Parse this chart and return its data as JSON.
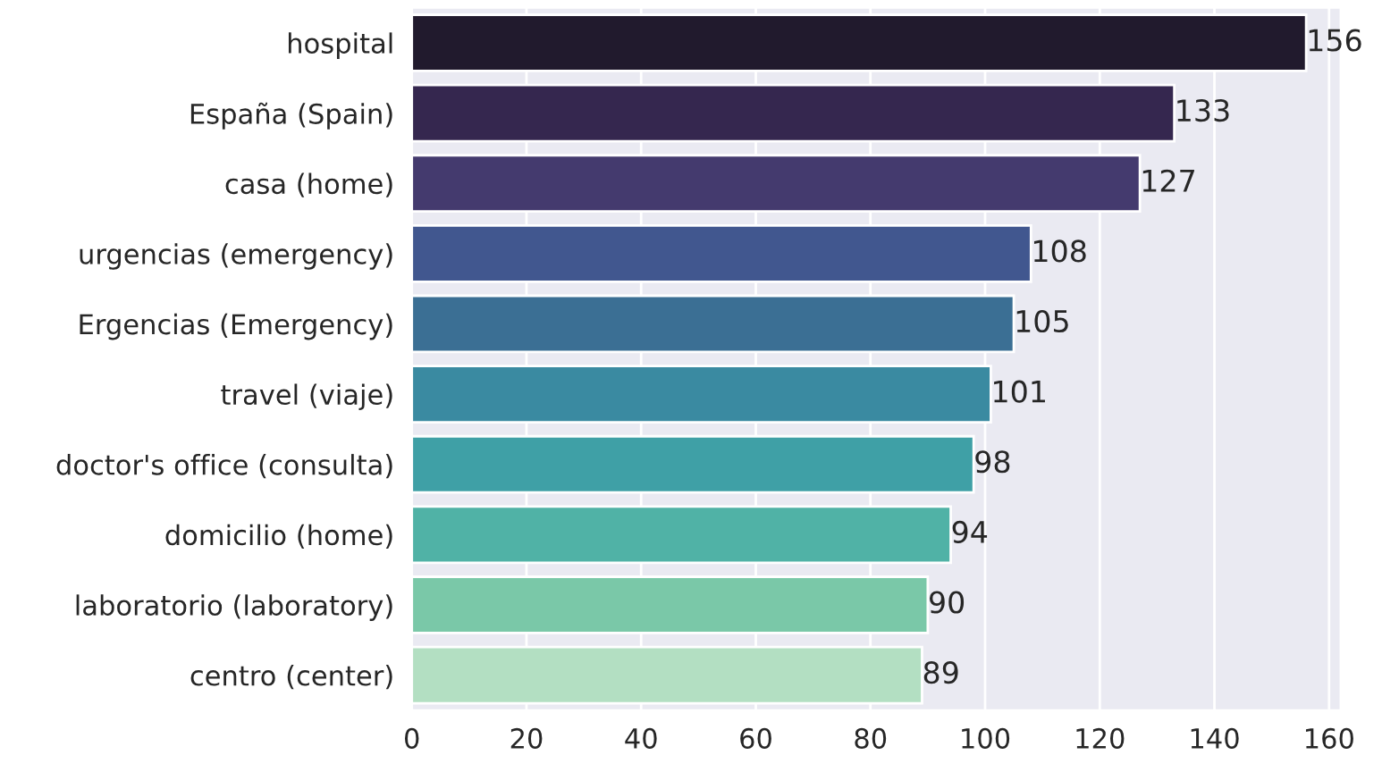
{
  "chart_data": {
    "type": "bar",
    "orientation": "horizontal",
    "categories": [
      "hospital",
      "España (Spain)",
      "casa (home)",
      "urgencias (emergency)",
      "Ergencias (Emergency)",
      "travel (viaje)",
      "doctor's office (consulta)",
      "domicilio (home)",
      "laboratorio (laboratory)",
      "centro (center)"
    ],
    "values": [
      156,
      133,
      127,
      108,
      105,
      101,
      98,
      94,
      90,
      89
    ],
    "colors": [
      "#211a2d",
      "#35274f",
      "#443a6e",
      "#41578f",
      "#3b6f94",
      "#3a8aa1",
      "#3fa0a6",
      "#50b2a6",
      "#7ac8a8",
      "#b3dfc2"
    ],
    "xlim": [
      0,
      162
    ],
    "xticks": [
      0,
      20,
      40,
      60,
      80,
      100,
      120,
      140,
      160
    ],
    "grid": "x",
    "data_labels": true
  }
}
